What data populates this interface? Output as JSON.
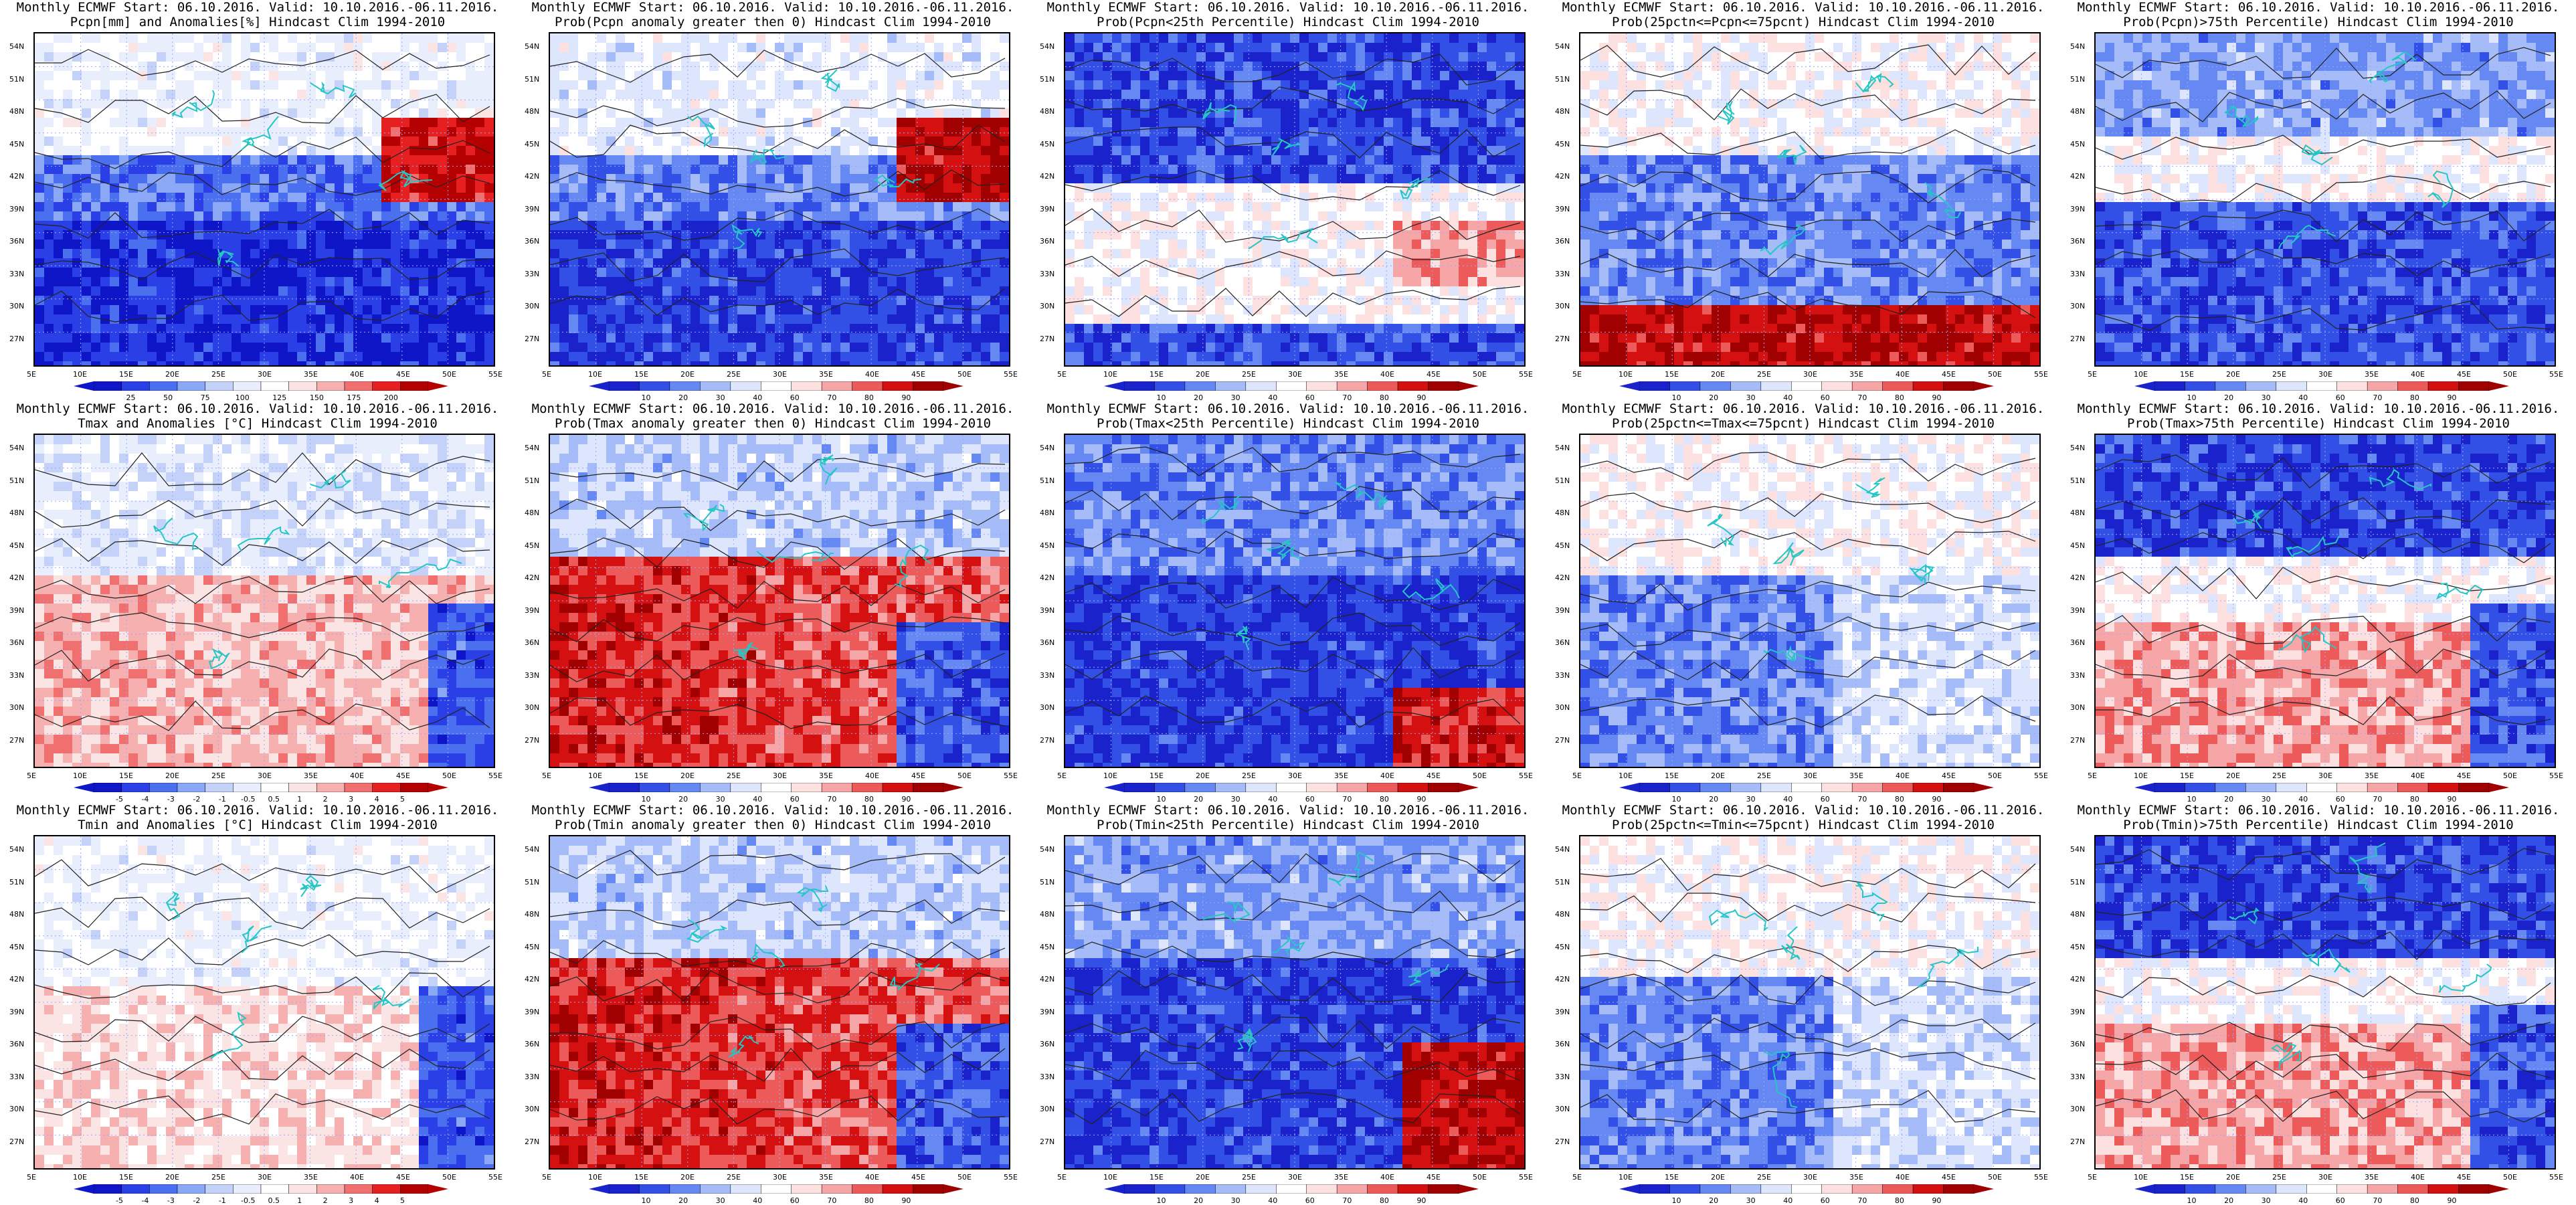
{
  "scale_colors": {
    "anomaly": [
      "#0f16c8",
      "#2a40e6",
      "#4a70f0",
      "#8aa8f5",
      "#c4d2fa",
      "#e8eefc",
      "#ffffff",
      "#fbe4e4",
      "#f6b0b0",
      "#f07070",
      "#e62020",
      "#b40000"
    ],
    "probability": [
      "#1a22cc",
      "#3350e6",
      "#6688f2",
      "#a6bcf8",
      "#dde6fc",
      "#ffffff",
      "#fde0e0",
      "#f6a6a6",
      "#ec5a5a",
      "#d41010",
      "#a00000"
    ]
  },
  "colors": {
    "contour": "#222222",
    "coastline": "#26c6c6",
    "grid": "#9aa6ff"
  },
  "lat_labels": [
    "54N",
    "51N",
    "48N",
    "45N",
    "42N",
    "39N",
    "36N",
    "33N",
    "30N",
    "27N"
  ],
  "lon_labels": [
    "5E",
    "10E",
    "15E",
    "20E",
    "25E",
    "30E",
    "35E",
    "40E",
    "45E",
    "50E",
    "55E"
  ],
  "panels": [
    {
      "title1": "Monthly ECMWF Start: 06.10.2016. Valid: 10.10.2016.-06.11.2016.",
      "title2": "Pcpn[mm] and Anomalies[%] Hindcast Clim 1994-2010",
      "scale": "anomaly",
      "scale_labels": [
        "25",
        "50",
        "75",
        "100",
        "125",
        "150",
        "175",
        "200"
      ],
      "pattern": "precip_anom"
    },
    {
      "title1": "Monthly ECMWF Start: 06.10.2016. Valid: 10.10.2016.-06.11.2016.",
      "title2": "Prob(Pcpn anomaly greater then 0) Hindcast Clim 1994-2010",
      "scale": "probability",
      "scale_labels": [
        "10",
        "20",
        "30",
        "40",
        "60",
        "70",
        "80",
        "90"
      ],
      "pattern": "precip_anom"
    },
    {
      "title1": "Monthly ECMWF Start: 06.10.2016. Valid: 10.10.2016.-06.11.2016.",
      "title2": "Prob(Pcpn<25th Percentile) Hindcast Clim 1994-2010",
      "scale": "probability",
      "scale_labels": [
        "10",
        "20",
        "30",
        "40",
        "60",
        "70",
        "80",
        "90"
      ],
      "pattern": "precip_low"
    },
    {
      "title1": "Monthly ECMWF Start: 06.10.2016. Valid: 10.10.2016.-06.11.2016.",
      "title2": "Prob(25pctn<=Pcpn<=75pcnt) Hindcast Clim 1994-2010",
      "scale": "probability",
      "scale_labels": [
        "10",
        "20",
        "30",
        "40",
        "60",
        "70",
        "80",
        "90"
      ],
      "pattern": "precip_mid"
    },
    {
      "title1": "Monthly ECMWF Start: 06.10.2016. Valid: 10.10.2016.-06.11.2016.",
      "title2": "Prob(Pcpn)>75th Percentile) Hindcast Clim 1994-2010",
      "scale": "probability",
      "scale_labels": [
        "10",
        "20",
        "30",
        "40",
        "60",
        "70",
        "80",
        "90"
      ],
      "pattern": "precip_high"
    },
    {
      "title1": "Monthly ECMWF Start: 06.10.2016. Valid: 10.10.2016.-06.11.2016.",
      "title2": "Tmax and Anomalies [°C] Hindcast Clim 1994-2010",
      "scale": "anomaly",
      "scale_labels": [
        "-5",
        "-4",
        "-3",
        "-2",
        "-1",
        "-0.5",
        "0.5",
        "1",
        "2",
        "3",
        "4",
        "5"
      ],
      "pattern": "warm_south"
    },
    {
      "title1": "Monthly ECMWF Start: 06.10.2016. Valid: 10.10.2016.-06.11.2016.",
      "title2": "Prob(Tmax anomaly greater then 0) Hindcast Clim 1994-2010",
      "scale": "probability",
      "scale_labels": [
        "10",
        "20",
        "30",
        "40",
        "60",
        "70",
        "80",
        "90"
      ],
      "pattern": "warm_south_strong"
    },
    {
      "title1": "Monthly ECMWF Start: 06.10.2016. Valid: 10.10.2016.-06.11.2016.",
      "title2": "Prob(Tmax<25th Percentile) Hindcast Clim 1994-2010",
      "scale": "probability",
      "scale_labels": [
        "10",
        "20",
        "30",
        "40",
        "60",
        "70",
        "80",
        "90"
      ],
      "pattern": "cold_low"
    },
    {
      "title1": "Monthly ECMWF Start: 06.10.2016. Valid: 10.10.2016.-06.11.2016.",
      "title2": "Prob(25pctn<=Tmax<=75pcnt) Hindcast Clim 1994-2010",
      "scale": "probability",
      "scale_labels": [
        "10",
        "20",
        "30",
        "40",
        "60",
        "70",
        "80",
        "90"
      ],
      "pattern": "mid_pale"
    },
    {
      "title1": "Monthly ECMWF Start: 06.10.2016. Valid: 10.10.2016.-06.11.2016.",
      "title2": "Prob(Tmax>75th Percentile) Hindcast Clim 1994-2010",
      "scale": "probability",
      "scale_labels": [
        "10",
        "20",
        "30",
        "40",
        "60",
        "70",
        "80",
        "90"
      ],
      "pattern": "north_blue_south_red"
    },
    {
      "title1": "Monthly ECMWF Start: 06.10.2016. Valid: 10.10.2016.-06.11.2016.",
      "title2": "Tmin and Anomalies [°C] Hindcast Clim 1994-2010",
      "scale": "anomaly",
      "scale_labels": [
        "-5",
        "-4",
        "-3",
        "-2",
        "-1",
        "-0.5",
        "0.5",
        "1",
        "2",
        "3",
        "4",
        "5"
      ],
      "pattern": "warm_south_pale"
    },
    {
      "title1": "Monthly ECMWF Start: 06.10.2016. Valid: 10.10.2016.-06.11.2016.",
      "title2": "Prob(Tmin anomaly greater then 0) Hindcast Clim 1994-2010",
      "scale": "probability",
      "scale_labels": [
        "10",
        "20",
        "30",
        "40",
        "60",
        "70",
        "80",
        "90"
      ],
      "pattern": "warm_south_strong"
    },
    {
      "title1": "Monthly ECMWF Start: 06.10.2016. Valid: 10.10.2016.-06.11.2016.",
      "title2": "Prob(Tmin<25th Percentile) Hindcast Clim 1994-2010",
      "scale": "probability",
      "scale_labels": [
        "10",
        "20",
        "30",
        "40",
        "60",
        "70",
        "80",
        "90"
      ],
      "pattern": "cold_low_se"
    },
    {
      "title1": "Monthly ECMWF Start: 06.10.2016. Valid: 10.10.2016.-06.11.2016.",
      "title2": "Prob(25pctn<=Tmin<=75pcnt) Hindcast Clim 1994-2010",
      "scale": "probability",
      "scale_labels": [
        "10",
        "20",
        "30",
        "40",
        "60",
        "70",
        "80",
        "90"
      ],
      "pattern": "mid_pale"
    },
    {
      "title1": "Monthly ECMWF Start: 06.10.2016. Valid: 10.10.2016.-06.11.2016.",
      "title2": "Prob(Tmin)>75th Percentile) Hindcast Clim 1994-2010",
      "scale": "probability",
      "scale_labels": [
        "10",
        "20",
        "30",
        "40",
        "60",
        "70",
        "80",
        "90"
      ],
      "pattern": "north_blue_south_red"
    }
  ]
}
